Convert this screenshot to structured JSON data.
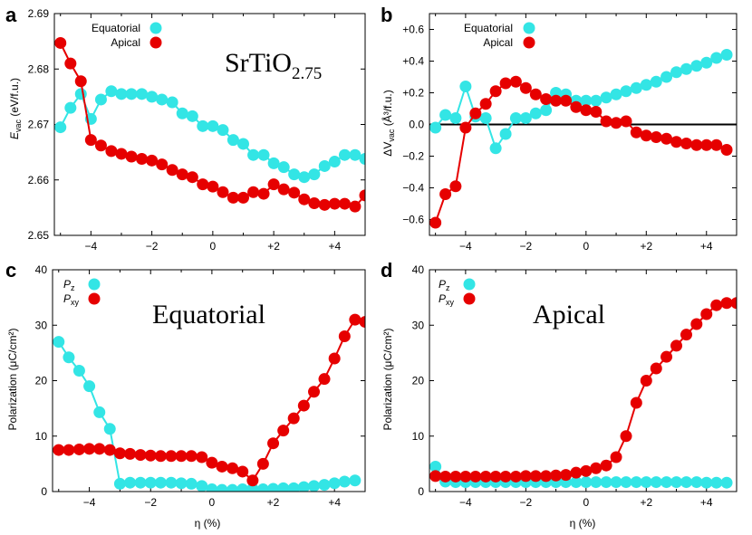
{
  "colors": {
    "equatorial": "#33e5e5",
    "apical": "#e60000",
    "zero_line": "#000000"
  },
  "chart_data": [
    {
      "panel": "a",
      "type": "line",
      "title": "SrTiO",
      "title_sub": "2.75",
      "ylabel_main": "E",
      "ylabel_sub": "vac",
      "ylabel_unit": " (eV/f.u.)",
      "xlim": [
        -5.2,
        5.0
      ],
      "ylim": [
        2.65,
        2.69
      ],
      "xticks": [
        {
          "v": -4,
          "label": "−4"
        },
        {
          "v": -2,
          "label": "−2"
        },
        {
          "v": 0,
          "label": "0"
        },
        {
          "v": 2,
          "label": "+2"
        },
        {
          "v": 4,
          "label": "+4"
        }
      ],
      "yticks": [
        {
          "v": 2.65,
          "label": "2.65"
        },
        {
          "v": 2.66,
          "label": "2.66"
        },
        {
          "v": 2.67,
          "label": "2.67"
        },
        {
          "v": 2.68,
          "label": "2.68"
        },
        {
          "v": 2.69,
          "label": "2.69"
        }
      ],
      "zero_line": false,
      "series": [
        {
          "name": "Equatorial",
          "color_key": "equatorial",
          "x": [
            -5.0,
            -4.67,
            -4.33,
            -4.0,
            -3.67,
            -3.33,
            -3.0,
            -2.67,
            -2.33,
            -2.0,
            -1.67,
            -1.33,
            -1.0,
            -0.67,
            -0.33,
            0.0,
            0.33,
            0.67,
            1.0,
            1.33,
            1.67,
            2.0,
            2.33,
            2.67,
            3.0,
            3.33,
            3.67,
            4.0,
            4.33,
            4.67,
            5.0
          ],
          "y": [
            2.6695,
            2.673,
            2.6755,
            2.671,
            2.6745,
            2.676,
            2.6755,
            2.6755,
            2.6755,
            2.675,
            2.6745,
            2.674,
            2.672,
            2.6715,
            2.6697,
            2.6697,
            2.669,
            2.6672,
            2.6665,
            2.6645,
            2.6645,
            2.663,
            2.6623,
            2.661,
            2.6605,
            2.661,
            2.6625,
            2.6633,
            2.6645,
            2.6645,
            2.6638
          ]
        },
        {
          "name": "Apical",
          "color_key": "apical",
          "x": [
            -5.0,
            -4.67,
            -4.33,
            -4.0,
            -3.67,
            -3.33,
            -3.0,
            -2.67,
            -2.33,
            -2.0,
            -1.67,
            -1.33,
            -1.0,
            -0.67,
            -0.33,
            0.0,
            0.33,
            0.67,
            1.0,
            1.33,
            1.67,
            2.0,
            2.33,
            2.67,
            3.0,
            3.33,
            3.67,
            4.0,
            4.33,
            4.67,
            5.0
          ],
          "y": [
            2.6847,
            2.681,
            2.6778,
            2.6672,
            2.6662,
            2.6652,
            2.6647,
            2.6642,
            2.6638,
            2.6635,
            2.6628,
            2.6618,
            2.661,
            2.6605,
            2.6592,
            2.6588,
            2.6578,
            2.6568,
            2.6568,
            2.6578,
            2.6575,
            2.6592,
            2.6583,
            2.6577,
            2.6565,
            2.6558,
            2.6555,
            2.6557,
            2.6557,
            2.6552,
            2.6572
          ]
        }
      ]
    },
    {
      "panel": "b",
      "type": "line",
      "ylabel_pre": "ΔV",
      "ylabel_sub": "vac",
      "ylabel_unit": " (Å³/f.u.)",
      "xlim": [
        -5.2,
        5.0
      ],
      "ylim": [
        -0.7,
        0.7
      ],
      "xticks": [
        {
          "v": -4,
          "label": "−4"
        },
        {
          "v": -2,
          "label": "−2"
        },
        {
          "v": 0,
          "label": "0"
        },
        {
          "v": 2,
          "label": "+2"
        },
        {
          "v": 4,
          "label": "+4"
        }
      ],
      "yticks": [
        {
          "v": -0.6,
          "label": "−0.6"
        },
        {
          "v": -0.4,
          "label": "−0.4"
        },
        {
          "v": -0.2,
          "label": "−0.2"
        },
        {
          "v": 0,
          "label": "0.0"
        },
        {
          "v": 0.2,
          "label": "+0.2"
        },
        {
          "v": 0.4,
          "label": "+0.4"
        },
        {
          "v": 0.6,
          "label": "+0.6"
        }
      ],
      "zero_line": true,
      "series": [
        {
          "name": "Equatorial",
          "color_key": "equatorial",
          "x": [
            -5.0,
            -4.67,
            -4.33,
            -4.0,
            -3.67,
            -3.33,
            -3.0,
            -2.67,
            -2.33,
            -2.0,
            -1.67,
            -1.33,
            -1.0,
            -0.67,
            -0.33,
            0.0,
            0.33,
            0.67,
            1.0,
            1.33,
            1.67,
            2.0,
            2.33,
            2.67,
            3.0,
            3.33,
            3.67,
            4.0,
            4.33,
            4.67
          ],
          "y": [
            -0.02,
            0.06,
            0.04,
            0.24,
            0.05,
            0.04,
            -0.15,
            -0.06,
            0.04,
            0.04,
            0.07,
            0.09,
            0.2,
            0.19,
            0.15,
            0.15,
            0.15,
            0.17,
            0.19,
            0.21,
            0.23,
            0.25,
            0.27,
            0.3,
            0.33,
            0.35,
            0.37,
            0.39,
            0.42,
            0.44
          ]
        },
        {
          "name": "Apical",
          "color_key": "apical",
          "x": [
            -5.0,
            -4.67,
            -4.33,
            -4.0,
            -3.67,
            -3.33,
            -3.0,
            -2.67,
            -2.33,
            -2.0,
            -1.67,
            -1.33,
            -1.0,
            -0.67,
            -0.33,
            0.0,
            0.33,
            0.67,
            1.0,
            1.33,
            1.67,
            2.0,
            2.33,
            2.67,
            3.0,
            3.33,
            3.67,
            4.0,
            4.33,
            4.67
          ],
          "y": [
            -0.62,
            -0.44,
            -0.39,
            -0.02,
            0.07,
            0.13,
            0.21,
            0.26,
            0.27,
            0.23,
            0.19,
            0.16,
            0.15,
            0.15,
            0.11,
            0.09,
            0.08,
            0.02,
            0.01,
            0.02,
            -0.05,
            -0.07,
            -0.08,
            -0.09,
            -0.11,
            -0.12,
            -0.13,
            -0.13,
            -0.13,
            -0.16
          ]
        }
      ]
    },
    {
      "panel": "c",
      "type": "line",
      "title": "Equatorial",
      "ylabel": "Polarization (μC/cm²)",
      "xlabel": "η (%)",
      "xlim": [
        -5.2,
        5.0
      ],
      "ylim": [
        0,
        40
      ],
      "xticks": [
        {
          "v": -4,
          "label": "−4"
        },
        {
          "v": -2,
          "label": "−2"
        },
        {
          "v": 0,
          "label": "0"
        },
        {
          "v": 2,
          "label": "+2"
        },
        {
          "v": 4,
          "label": "+4"
        }
      ],
      "yticks": [
        {
          "v": 0,
          "label": "0"
        },
        {
          "v": 10,
          "label": "10"
        },
        {
          "v": 20,
          "label": "20"
        },
        {
          "v": 30,
          "label": "30"
        },
        {
          "v": 40,
          "label": "40"
        }
      ],
      "zero_line": false,
      "series": [
        {
          "name": "P_z",
          "label_main": "P",
          "label_sub": "z",
          "color_key": "equatorial",
          "x": [
            -5.0,
            -4.67,
            -4.33,
            -4.0,
            -3.67,
            -3.33,
            -3.0,
            -2.67,
            -2.33,
            -2.0,
            -1.67,
            -1.33,
            -1.0,
            -0.67,
            -0.33,
            0.0,
            0.33,
            0.67,
            1.0,
            1.33,
            1.67,
            2.0,
            2.33,
            2.67,
            3.0,
            3.33,
            3.67,
            4.0,
            4.33,
            4.67
          ],
          "y": [
            27.0,
            24.2,
            21.8,
            19.0,
            14.3,
            11.3,
            1.4,
            1.6,
            1.6,
            1.6,
            1.6,
            1.6,
            1.5,
            1.4,
            1.0,
            0.4,
            0.3,
            0.3,
            0.4,
            0.5,
            0.4,
            0.5,
            0.6,
            0.6,
            0.8,
            1.0,
            1.2,
            1.5,
            1.8,
            2.0
          ]
        },
        {
          "name": "P_xy",
          "label_main": "P",
          "label_sub": "xy",
          "color_key": "apical",
          "x": [
            -5.0,
            -4.67,
            -4.33,
            -4.0,
            -3.67,
            -3.33,
            -3.0,
            -2.67,
            -2.33,
            -2.0,
            -1.67,
            -1.33,
            -1.0,
            -0.67,
            -0.33,
            0.0,
            0.33,
            0.67,
            1.0,
            1.33,
            1.67,
            2.0,
            2.33,
            2.67,
            3.0,
            3.33,
            3.67,
            4.0,
            4.33,
            4.67,
            5.0
          ],
          "y": [
            7.5,
            7.5,
            7.6,
            7.7,
            7.7,
            7.5,
            6.9,
            6.8,
            6.6,
            6.5,
            6.4,
            6.4,
            6.4,
            6.4,
            6.2,
            5.2,
            4.5,
            4.2,
            3.6,
            2.0,
            5.0,
            8.7,
            11.0,
            13.2,
            15.5,
            18.0,
            20.3,
            24.0,
            28.0,
            31.0,
            30.6
          ]
        }
      ]
    },
    {
      "panel": "d",
      "type": "line",
      "title": "Apical",
      "ylabel": "Polarization (μC/cm²)",
      "xlabel": "η (%)",
      "xlim": [
        -5.2,
        5.0
      ],
      "ylim": [
        0,
        40
      ],
      "xticks": [
        {
          "v": -4,
          "label": "−4"
        },
        {
          "v": -2,
          "label": "−2"
        },
        {
          "v": 0,
          "label": "0"
        },
        {
          "v": 2,
          "label": "+2"
        },
        {
          "v": 4,
          "label": "+4"
        }
      ],
      "yticks": [
        {
          "v": 0,
          "label": "0"
        },
        {
          "v": 10,
          "label": "10"
        },
        {
          "v": 20,
          "label": "20"
        },
        {
          "v": 30,
          "label": "30"
        },
        {
          "v": 40,
          "label": "40"
        }
      ],
      "zero_line": false,
      "series": [
        {
          "name": "P_z",
          "label_main": "P",
          "label_sub": "z",
          "color_key": "equatorial",
          "x": [
            -5.0,
            -4.67,
            -4.33,
            -4.0,
            -3.67,
            -3.33,
            -3.0,
            -2.67,
            -2.33,
            -2.0,
            -1.67,
            -1.33,
            -1.0,
            -0.67,
            -0.33,
            0.0,
            0.33,
            0.67,
            1.0,
            1.33,
            1.67,
            2.0,
            2.33,
            2.67,
            3.0,
            3.33,
            3.67,
            4.0,
            4.33,
            4.67
          ],
          "y": [
            4.5,
            1.8,
            1.7,
            1.7,
            1.7,
            1.7,
            1.7,
            1.7,
            1.7,
            1.7,
            1.7,
            1.7,
            1.7,
            1.7,
            1.7,
            1.7,
            1.7,
            1.7,
            1.7,
            1.7,
            1.7,
            1.7,
            1.7,
            1.7,
            1.7,
            1.7,
            1.7,
            1.6,
            1.6,
            1.6
          ]
        },
        {
          "name": "P_xy",
          "label_main": "P",
          "label_sub": "xy",
          "color_key": "apical",
          "x": [
            -5.0,
            -4.67,
            -4.33,
            -4.0,
            -3.67,
            -3.33,
            -3.0,
            -2.67,
            -2.33,
            -2.0,
            -1.67,
            -1.33,
            -1.0,
            -0.67,
            -0.33,
            0.0,
            0.33,
            0.67,
            1.0,
            1.33,
            1.67,
            2.0,
            2.33,
            2.67,
            3.0,
            3.33,
            3.67,
            4.0,
            4.33,
            4.67,
            5.0
          ],
          "y": [
            2.8,
            2.7,
            2.7,
            2.7,
            2.7,
            2.7,
            2.7,
            2.7,
            2.7,
            2.8,
            2.8,
            2.8,
            2.9,
            3.0,
            3.4,
            3.7,
            4.2,
            4.7,
            6.2,
            10.0,
            16.0,
            20.0,
            22.2,
            24.3,
            26.3,
            28.3,
            30.2,
            32.0,
            33.6,
            34.0,
            34.0
          ]
        }
      ]
    }
  ]
}
